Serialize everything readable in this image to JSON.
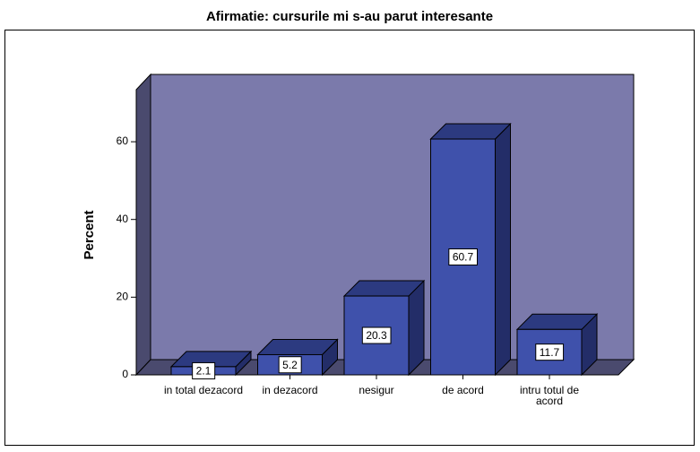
{
  "chart_data": {
    "type": "bar3d",
    "title": "Afirmatie: cursurile mi s-au parut interesante",
    "y_label": "Percent",
    "categories": [
      "in total dezacord",
      "in dezacord",
      "nesigur",
      "de acord",
      "intru totul de acord"
    ],
    "values": [
      2.1,
      5.2,
      20.3,
      60.7,
      11.7
    ],
    "color": "#3f51ab",
    "ylim": [
      0,
      73.4
    ],
    "yticks": [
      0,
      20,
      40,
      60
    ]
  }
}
